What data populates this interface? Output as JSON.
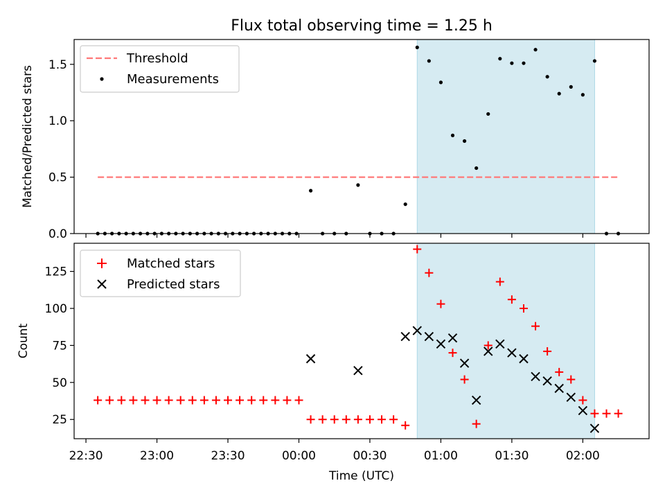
{
  "chart_data": [
    {
      "type": "scatter",
      "title": "Flux total observing time = 1.25 h",
      "xlabel": "",
      "ylabel": "Matched/Predicted stars",
      "ylim": [
        0,
        1.72
      ],
      "yticks": [
        0.0,
        0.5,
        1.0,
        1.5
      ],
      "ytick_labels": [
        "0.0",
        "0.5",
        "1.0",
        "1.5"
      ],
      "legend_position": "top-left",
      "highlight_span": {
        "start": "00:50",
        "end": "02:05",
        "color": "#add8e6"
      },
      "threshold": {
        "name": "Threshold",
        "value": 0.5,
        "x_start": "22:35",
        "x_end": "02:15",
        "color": "#ff8080",
        "style": "dashed"
      },
      "series": [
        {
          "name": "Measurements",
          "marker": "dot",
          "color": "#000000",
          "x": [
            "22:35",
            "22:38",
            "22:41",
            "22:44",
            "22:47",
            "22:50",
            "22:53",
            "22:56",
            "22:59",
            "23:02",
            "23:05",
            "23:08",
            "23:11",
            "23:14",
            "23:17",
            "23:20",
            "23:23",
            "23:26",
            "23:29",
            "23:32",
            "23:35",
            "23:38",
            "23:41",
            "23:44",
            "23:47",
            "23:50",
            "23:53",
            "23:56",
            "23:59",
            "00:05",
            "00:10",
            "00:15",
            "00:20",
            "00:25",
            "00:30",
            "00:35",
            "00:40",
            "00:45",
            "00:50",
            "00:55",
            "01:00",
            "01:05",
            "01:10",
            "01:15",
            "01:20",
            "01:25",
            "01:30",
            "01:35",
            "01:40",
            "01:45",
            "01:50",
            "01:55",
            "02:00",
            "02:05",
            "02:10",
            "02:15"
          ],
          "y": [
            0,
            0,
            0,
            0,
            0,
            0,
            0,
            0,
            0,
            0,
            0,
            0,
            0,
            0,
            0,
            0,
            0,
            0,
            0,
            0,
            0,
            0,
            0,
            0,
            0,
            0,
            0,
            0,
            0,
            0.38,
            0,
            0,
            0,
            0.43,
            0,
            0,
            0,
            0.26,
            1.65,
            1.53,
            1.34,
            0.87,
            0.82,
            0.58,
            1.06,
            1.55,
            1.51,
            1.51,
            1.63,
            1.39,
            1.24,
            1.3,
            1.23,
            1.53,
            0,
            0
          ]
        }
      ]
    },
    {
      "type": "scatter",
      "title": "",
      "xlabel": "Time (UTC)",
      "ylabel": "Count",
      "ylim": [
        12,
        144
      ],
      "yticks": [
        25,
        50,
        75,
        100,
        125
      ],
      "ytick_labels": [
        "25",
        "50",
        "75",
        "100",
        "125"
      ],
      "x_domain": [
        "22:25",
        "02:28"
      ],
      "xticks": [
        "22:30",
        "23:00",
        "23:30",
        "00:00",
        "00:30",
        "01:00",
        "01:30",
        "02:00"
      ],
      "xtick_labels": [
        "22:30",
        "23:00",
        "23:30",
        "00:00",
        "00:30",
        "01:00",
        "01:30",
        "02:00"
      ],
      "legend_position": "top-left",
      "highlight_span": {
        "start": "00:50",
        "end": "02:05",
        "color": "#add8e6"
      },
      "series": [
        {
          "name": "Matched stars",
          "marker": "plus",
          "color": "#ff0000",
          "x": [
            "22:35",
            "22:40",
            "22:45",
            "22:50",
            "22:55",
            "23:00",
            "23:05",
            "23:10",
            "23:15",
            "23:20",
            "23:25",
            "23:30",
            "23:35",
            "23:40",
            "23:45",
            "23:50",
            "23:55",
            "00:00",
            "00:05",
            "00:10",
            "00:15",
            "00:20",
            "00:25",
            "00:30",
            "00:35",
            "00:40",
            "00:45",
            "00:50",
            "00:55",
            "01:00",
            "01:05",
            "01:10",
            "01:15",
            "01:20",
            "01:25",
            "01:30",
            "01:35",
            "01:40",
            "01:45",
            "01:50",
            "01:55",
            "02:00",
            "02:05",
            "02:10",
            "02:15"
          ],
          "y": [
            38,
            38,
            38,
            38,
            38,
            38,
            38,
            38,
            38,
            38,
            38,
            38,
            38,
            38,
            38,
            38,
            38,
            38,
            25,
            25,
            25,
            25,
            25,
            25,
            25,
            25,
            21,
            140,
            124,
            103,
            70,
            52,
            22,
            75,
            118,
            106,
            100,
            88,
            71,
            57,
            52,
            38,
            29,
            29,
            29
          ]
        },
        {
          "name": "Predicted stars",
          "marker": "x",
          "color": "#000000",
          "x": [
            "00:05",
            "00:25",
            "00:45",
            "00:50",
            "00:55",
            "01:00",
            "01:05",
            "01:10",
            "01:15",
            "01:20",
            "01:25",
            "01:30",
            "01:35",
            "01:40",
            "01:45",
            "01:50",
            "01:55",
            "02:00",
            "02:05"
          ],
          "y": [
            66,
            58,
            81,
            85,
            81,
            76,
            80,
            63,
            38,
            71,
            76,
            70,
            66,
            54,
            51,
            46,
            40,
            31,
            19
          ]
        }
      ]
    }
  ]
}
